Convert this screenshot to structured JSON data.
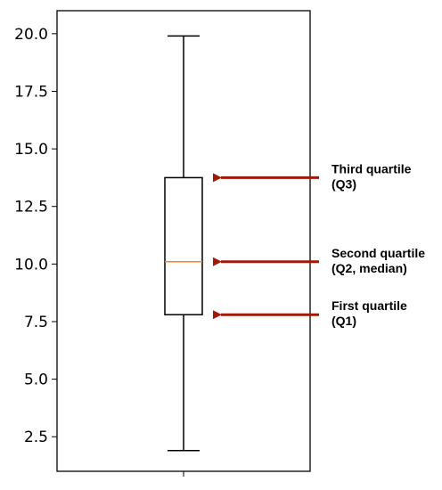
{
  "chart_data": {
    "type": "box",
    "ylim": [
      1.0,
      21.0
    ],
    "yticks": [
      "2.5",
      "5.0",
      "7.5",
      "10.0",
      "12.5",
      "15.0",
      "17.5",
      "20.0"
    ],
    "ytick_values": [
      2.5,
      5.0,
      7.5,
      10.0,
      12.5,
      15.0,
      17.5,
      20.0
    ],
    "box": {
      "whisker_low": 1.9,
      "q1": 7.8,
      "median": 10.1,
      "q3": 13.75,
      "whisker_high": 19.9
    },
    "grid": false,
    "annotations": [
      {
        "lines": [
          "Third quartile",
          "(Q3)"
        ],
        "points_to": "q3"
      },
      {
        "lines": [
          "Second quartile",
          "(Q2, median)"
        ],
        "points_to": "median"
      },
      {
        "lines": [
          "First quartile",
          "(Q1)"
        ],
        "points_to": "q1"
      }
    ],
    "colors": {
      "box": "#000000",
      "median": "#ff7f0e",
      "arrow": "#a01a0a"
    }
  }
}
